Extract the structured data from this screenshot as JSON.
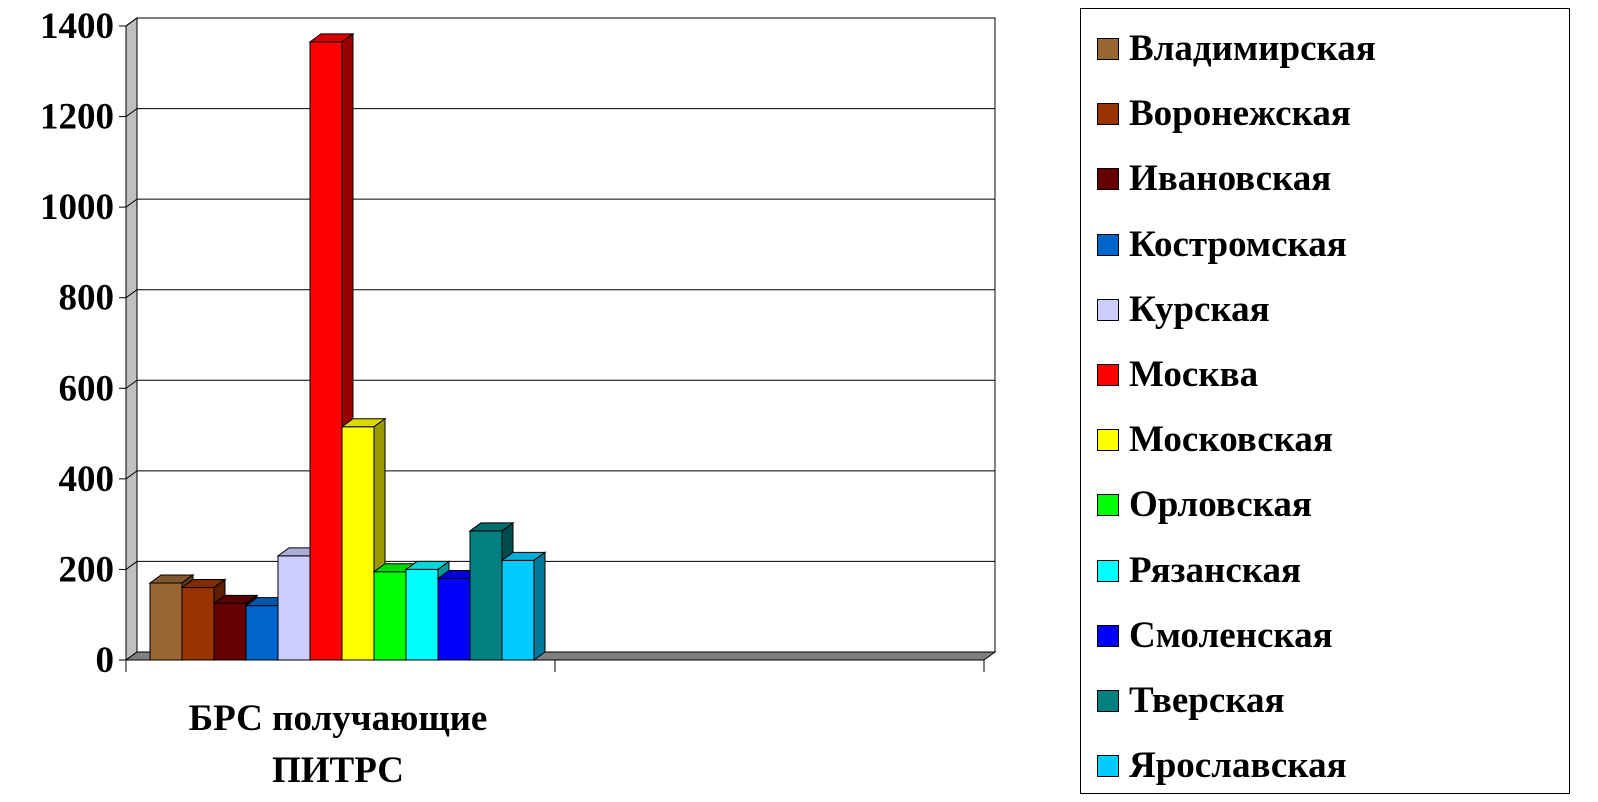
{
  "chart_data": {
    "type": "bar",
    "title": "",
    "xlabel": "",
    "ylabel": "",
    "categories": [
      "БРС получающие ПИТРС",
      ""
    ],
    "category_label_lines": [
      "БРС получающие",
      "ПИТРС"
    ],
    "yticks": [
      "0",
      "200",
      "400",
      "600",
      "800",
      "1000",
      "1200",
      "1400"
    ],
    "ylim": [
      0,
      1400
    ],
    "grid": true,
    "legend_position": "right",
    "style": "3d-clustered-column",
    "series": [
      {
        "name": "Владимирская",
        "color": "#996633",
        "values": [
          170,
          null
        ]
      },
      {
        "name": "Воронежская",
        "color": "#993300",
        "values": [
          160,
          null
        ]
      },
      {
        "name": "Ивановская",
        "color": "#660000",
        "values": [
          125,
          null
        ]
      },
      {
        "name": "Костромская",
        "color": "#0066cc",
        "values": [
          120,
          null
        ]
      },
      {
        "name": "Курская",
        "color": "#ccccff",
        "values": [
          230,
          null
        ]
      },
      {
        "name": "Москва",
        "color": "#ff0000",
        "values": [
          1365,
          null
        ]
      },
      {
        "name": "Московская",
        "color": "#ffff00",
        "values": [
          515,
          null
        ]
      },
      {
        "name": "Орловская",
        "color": "#00ff00",
        "values": [
          195,
          null
        ]
      },
      {
        "name": "Рязанская",
        "color": "#00ffff",
        "values": [
          200,
          null
        ]
      },
      {
        "name": "Смоленская",
        "color": "#0000ff",
        "values": [
          180,
          null
        ]
      },
      {
        "name": "Тверская",
        "color": "#008080",
        "values": [
          285,
          null
        ]
      },
      {
        "name": "Ярославская",
        "color": "#00ccff",
        "values": [
          220,
          null
        ]
      }
    ]
  }
}
